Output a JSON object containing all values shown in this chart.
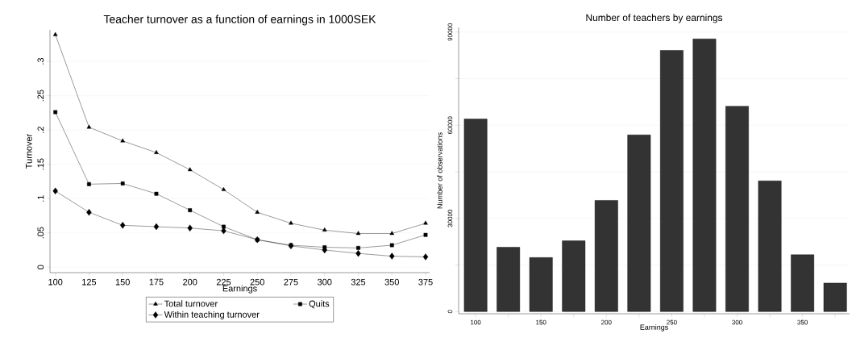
{
  "chart_data": [
    {
      "type": "line",
      "title": "Teacher turnover as a function of earnings in 1000SEK",
      "xlabel": "Earnings",
      "ylabel": "Turnover",
      "x": [
        100,
        125,
        150,
        175,
        200,
        225,
        250,
        275,
        300,
        325,
        350,
        375
      ],
      "series": [
        {
          "name": "Total turnover",
          "color": "#000000",
          "marker": "triangle",
          "values": [
            0.339,
            0.204,
            0.184,
            0.167,
            0.142,
            0.113,
            0.08,
            0.064,
            0.054,
            0.049,
            0.049,
            0.064
          ]
        },
        {
          "name": "Quits",
          "color": "#000000",
          "marker": "square",
          "values": [
            0.226,
            0.121,
            0.122,
            0.107,
            0.083,
            0.059,
            0.04,
            0.032,
            0.029,
            0.028,
            0.032,
            0.047
          ]
        },
        {
          "name": "Within teaching turnover",
          "color": "#000000",
          "marker": "diamond",
          "values": [
            0.111,
            0.08,
            0.061,
            0.059,
            0.057,
            0.053,
            0.04,
            0.031,
            0.025,
            0.02,
            0.016,
            0.015
          ]
        }
      ],
      "xlim": [
        96,
        378
      ],
      "ylim": [
        -0.008,
        0.346
      ],
      "xticks": [
        100,
        125,
        150,
        175,
        200,
        225,
        250,
        275,
        300,
        325,
        350,
        375
      ],
      "yticks": [
        0,
        {
          "value": 0.05,
          "label": ".05"
        },
        {
          "value": 0.1,
          "label": ".1"
        },
        {
          "value": 0.15,
          "label": ".15"
        },
        {
          "value": 0.2,
          "label": ".2"
        },
        {
          "value": 0.25,
          "label": ".25"
        },
        {
          "value": 0.3,
          "label": ".3"
        }
      ],
      "grid": "y",
      "legend": "bottom"
    },
    {
      "type": "bar",
      "title": "Number of teachers by earnings",
      "xlabel": "Earnings",
      "ylabel": "Number of observations",
      "x": [
        100,
        125,
        150,
        175,
        200,
        225,
        250,
        275,
        300,
        325,
        350,
        375
      ],
      "values": [
        62000,
        20700,
        17400,
        22800,
        35800,
        56900,
        84100,
        87800,
        66100,
        42100,
        18300,
        9200
      ],
      "color": "#333333",
      "xlim": [
        87,
        386
      ],
      "ylim": [
        -700,
        91500
      ],
      "xticks": [
        100,
        {
          "value": 125,
          "label": null
        },
        150,
        {
          "value": 175,
          "label": null
        },
        200,
        {
          "value": 225,
          "label": null
        },
        250,
        {
          "value": 275,
          "label": null
        },
        300,
        {
          "value": 325,
          "label": null
        },
        350,
        {
          "value": 375,
          "label": null
        }
      ],
      "yticks": [
        0,
        {
          "value": 15000,
          "label": null
        },
        30000,
        {
          "value": 45000,
          "label": null
        },
        60000,
        {
          "value": 75000,
          "label": null
        },
        90000
      ],
      "grid": "y"
    }
  ]
}
